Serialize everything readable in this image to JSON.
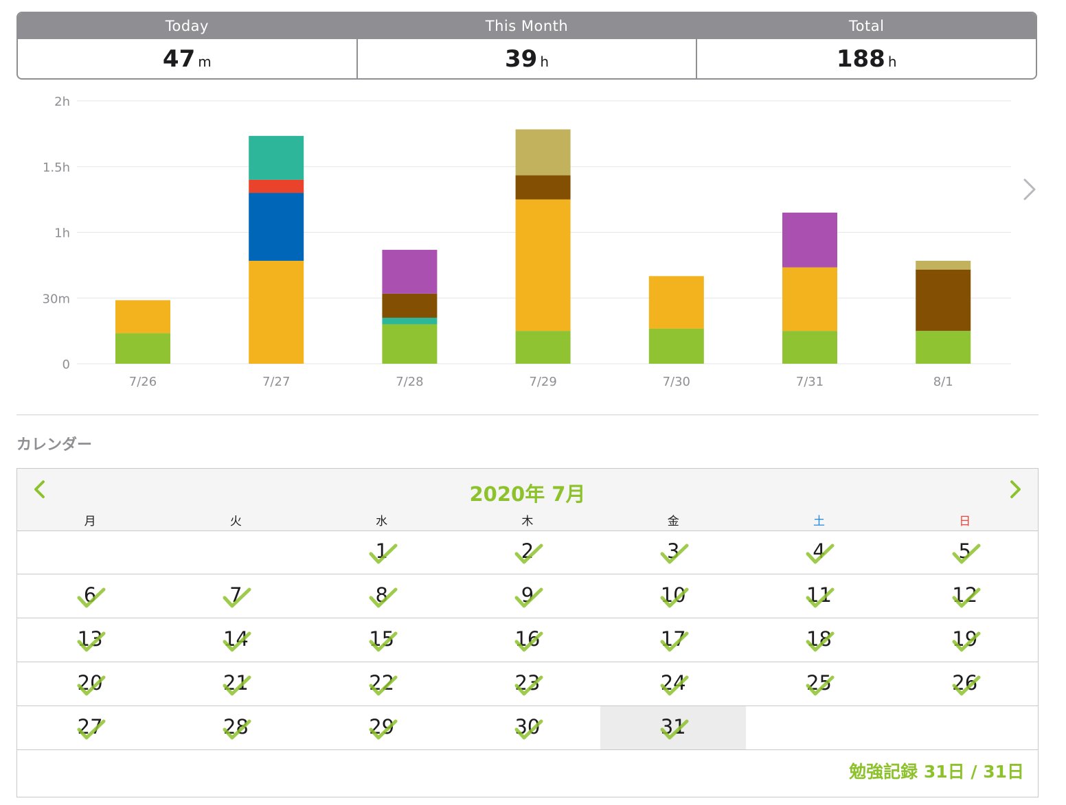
{
  "stats": {
    "today": {
      "label": "Today",
      "value": "47",
      "unit": "m"
    },
    "month": {
      "label": "This Month",
      "value": "39",
      "unit": "h"
    },
    "total": {
      "label": "Total",
      "value": "188",
      "unit": "h"
    }
  },
  "colors": {
    "green": "#8fc331",
    "yellow": "#f2b31e",
    "teal": "#2db69a",
    "red": "#e9432c",
    "blue": "#0066b8",
    "olive": "#c2b25d",
    "brown": "#834f02",
    "purple": "#a950b0",
    "accent": "#8dc22d"
  },
  "chart_data": {
    "type": "bar",
    "stacked": true,
    "categories": [
      "7/26",
      "7/27",
      "7/28",
      "7/29",
      "7/30",
      "7/31",
      "8/1"
    ],
    "y_ticks": [
      "0",
      "30m",
      "1h",
      "1.5h",
      "2h"
    ],
    "ylim_minutes": [
      0,
      120
    ],
    "grid": true,
    "series": [
      {
        "color": "green",
        "values": [
          14,
          0,
          18,
          15,
          16,
          15,
          15
        ]
      },
      {
        "color": "teal",
        "values": [
          0,
          0,
          3,
          0,
          0,
          0,
          0
        ]
      },
      {
        "color": "yellow",
        "values": [
          15,
          47,
          0,
          60,
          24,
          29,
          0
        ]
      },
      {
        "color": "blue",
        "values": [
          0,
          31,
          0,
          0,
          0,
          0,
          0
        ]
      },
      {
        "color": "red",
        "values": [
          0,
          6,
          0,
          0,
          0,
          0,
          0
        ]
      },
      {
        "color": "teal",
        "values": [
          0,
          20,
          0,
          0,
          0,
          0,
          0
        ]
      },
      {
        "color": "brown",
        "values": [
          0,
          0,
          11,
          11,
          0,
          0,
          28
        ]
      },
      {
        "color": "purple",
        "values": [
          0,
          0,
          20,
          0,
          0,
          25,
          0
        ]
      },
      {
        "color": "olive",
        "values": [
          0,
          0,
          0,
          21,
          0,
          0,
          4
        ]
      }
    ]
  },
  "calendar_section": {
    "title": "カレンダー"
  },
  "calendar": {
    "month_label": "2020年 7月",
    "weekdays": [
      "月",
      "火",
      "水",
      "木",
      "金",
      "土",
      "日"
    ],
    "weeks": [
      [
        "",
        "",
        "1",
        "2",
        "3",
        "4",
        "5"
      ],
      [
        "6",
        "7",
        "8",
        "9",
        "10",
        "11",
        "12"
      ],
      [
        "13",
        "14",
        "15",
        "16",
        "17",
        "18",
        "19"
      ],
      [
        "20",
        "21",
        "22",
        "23",
        "24",
        "25",
        "26"
      ],
      [
        "27",
        "28",
        "29",
        "30",
        "31",
        "",
        ""
      ]
    ],
    "today": "31",
    "record_label": "勉強記録 31日 / 31日"
  }
}
